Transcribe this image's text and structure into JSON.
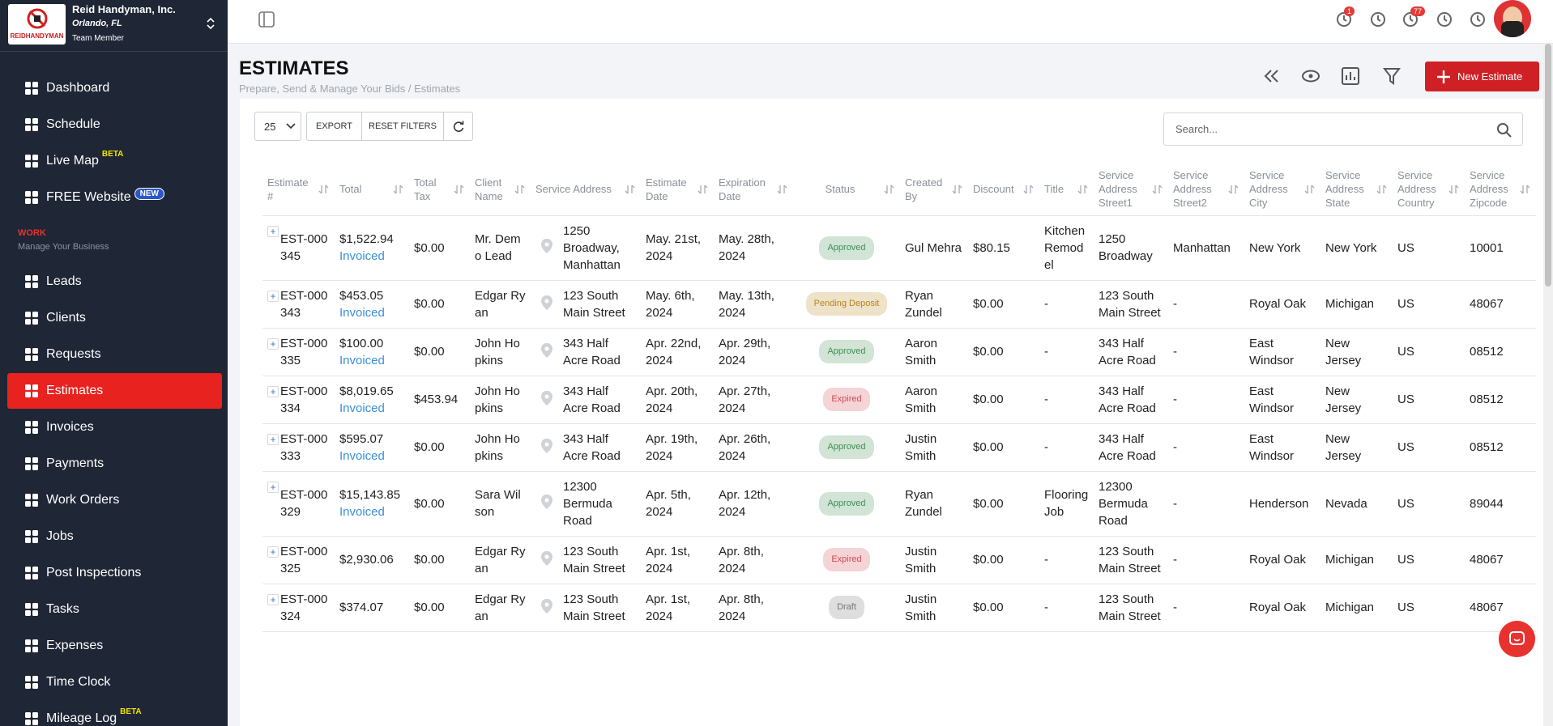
{
  "sidebar": {
    "company": "Reid Handyman, Inc.",
    "location": "Orlando, FL",
    "role": "Team Member",
    "logo_text": "REIDHANDYMAN",
    "nav_top": [
      {
        "label": "Dashboard"
      },
      {
        "label": "Schedule"
      },
      {
        "label": "Live Map",
        "tag": "BETA"
      },
      {
        "label": "FREE Website",
        "tag": "NEW"
      }
    ],
    "section": {
      "title": "WORK",
      "subtitle": "Manage Your Business"
    },
    "nav_work": [
      {
        "label": "Leads"
      },
      {
        "label": "Clients"
      },
      {
        "label": "Requests"
      },
      {
        "label": "Estimates",
        "active": true
      },
      {
        "label": "Invoices"
      },
      {
        "label": "Payments"
      },
      {
        "label": "Work Orders"
      },
      {
        "label": "Jobs"
      },
      {
        "label": "Post Inspections"
      },
      {
        "label": "Tasks"
      },
      {
        "label": "Expenses"
      },
      {
        "label": "Time Clock"
      },
      {
        "label": "Mileage Log",
        "tag": "BETA"
      }
    ]
  },
  "topbar": {
    "badges": [
      1,
      77
    ]
  },
  "page": {
    "title": "ESTIMATES",
    "subtitle": "Prepare, Send & Manage Your Bids / Estimates",
    "new_button": "New Estimate"
  },
  "toolbar": {
    "page_size": "25",
    "export": "EXPORT",
    "reset": "RESET FILTERS",
    "search_placeholder": "Search..."
  },
  "table": {
    "columns": [
      "Estimate #",
      "Total",
      "Total Tax",
      "Client Name",
      "Service Address",
      "Estimate Date",
      "Expiration Date",
      "Status",
      "Created By",
      "Discount",
      "Title",
      "Service Address Street1",
      "Service Address Street2",
      "Service Address City",
      "Service Address State",
      "Service Address Country",
      "Service Address Zipcode"
    ],
    "rows": [
      {
        "number": "EST-000345",
        "total": "$1,522.94",
        "invoice": "Invoiced",
        "tax": "$0.00",
        "client": "Mr. Demo Lead",
        "address": "1250 Broadway, Manhattan",
        "estimate_date": "May. 21st, 2024",
        "expiration_date": "May. 28th, 2024",
        "status": "Approved",
        "status_color": "#3f8f55",
        "created_by": "Gul Mehra",
        "discount": "$80.15",
        "title": "Kitchen Remodel",
        "street1": "1250 Broadway",
        "street2": "Manhattan",
        "city": "New York",
        "state": "New York",
        "country": "US",
        "zip": "10001"
      },
      {
        "number": "EST-000343",
        "total": "$453.05",
        "invoice": "Invoiced",
        "tax": "$0.00",
        "client": "Edgar Ryan",
        "address": "123 South Main Street",
        "estimate_date": "May. 6th, 2024",
        "expiration_date": "May. 13th, 2024",
        "status": "Pending Deposit",
        "status_color": "#b7861a",
        "created_by": "Ryan Zundel",
        "discount": "$0.00",
        "title": "-",
        "street1": "123 South Main Street",
        "street2": "-",
        "city": "Royal Oak",
        "state": "Michigan",
        "country": "US",
        "zip": "48067"
      },
      {
        "number": "EST-000335",
        "total": "$100.00",
        "invoice": "Invoiced",
        "tax": "$0.00",
        "client": "John Hopkins",
        "address": "343 Half Acre Road",
        "estimate_date": "Apr. 22nd, 2024",
        "expiration_date": "Apr. 29th, 2024",
        "status": "Approved",
        "status_color": "#3f8f55",
        "created_by": "Aaron Smith",
        "discount": "$0.00",
        "title": "-",
        "street1": "343 Half Acre Road",
        "street2": "-",
        "city": "East Windsor",
        "state": "New Jersey",
        "country": "US",
        "zip": "08512"
      },
      {
        "number": "EST-000334",
        "total": "$8,019.65",
        "invoice": "Invoiced",
        "tax": "$453.94",
        "client": "John Hopkins",
        "address": "343 Half Acre Road",
        "estimate_date": "Apr. 20th, 2024",
        "expiration_date": "Apr. 27th, 2024",
        "status": "Expired",
        "status_color": "#d14b55",
        "created_by": "Aaron Smith",
        "discount": "$0.00",
        "title": "-",
        "street1": "343 Half Acre Road",
        "street2": "-",
        "city": "East Windsor",
        "state": "New Jersey",
        "country": "US",
        "zip": "08512"
      },
      {
        "number": "EST-000333",
        "total": "$595.07",
        "invoice": "Invoiced",
        "tax": "$0.00",
        "client": "John Hopkins",
        "address": "343 Half Acre Road",
        "estimate_date": "Apr. 19th, 2024",
        "expiration_date": "Apr. 26th, 2024",
        "status": "Approved",
        "status_color": "#3f8f55",
        "created_by": "Justin Smith",
        "discount": "$0.00",
        "title": "-",
        "street1": "343 Half Acre Road",
        "street2": "-",
        "city": "East Windsor",
        "state": "New Jersey",
        "country": "US",
        "zip": "08512"
      },
      {
        "number": "EST-000329",
        "total": "$15,143.85",
        "invoice": "Invoiced",
        "tax": "$0.00",
        "client": "Sara Wilson",
        "address": "12300 Bermuda Road",
        "estimate_date": "Apr. 5th, 2024",
        "expiration_date": "Apr. 12th, 2024",
        "status": "Approved",
        "status_color": "#3f8f55",
        "created_by": "Ryan Zundel",
        "discount": "$0.00",
        "title": "Flooring Job",
        "street1": "12300 Bermuda Road",
        "street2": "-",
        "city": "Henderson",
        "state": "Nevada",
        "country": "US",
        "zip": "89044"
      },
      {
        "number": "EST-000325",
        "total": "$2,930.06",
        "tax": "$0.00",
        "client": "Edgar Ryan",
        "address": "123 South Main Street",
        "estimate_date": "Apr. 1st, 2024",
        "expiration_date": "Apr. 8th, 2024",
        "status": "Expired",
        "status_color": "#d14b55",
        "created_by": "Justin Smith",
        "discount": "$0.00",
        "title": "-",
        "street1": "123 South Main Street",
        "street2": "-",
        "city": "Royal Oak",
        "state": "Michigan",
        "country": "US",
        "zip": "48067"
      },
      {
        "number": "EST-000324",
        "total": "$374.07",
        "tax": "$0.00",
        "client": "Edgar Ryan",
        "address": "123 South Main Street",
        "estimate_date": "Apr. 1st, 2024",
        "expiration_date": "Apr. 8th, 2024",
        "status": "Draft",
        "status_color": "#777777",
        "created_by": "Justin Smith",
        "discount": "$0.00",
        "title": "-",
        "street1": "123 South Main Street",
        "street2": "-",
        "city": "Royal Oak",
        "state": "Michigan",
        "country": "US",
        "zip": "48067"
      }
    ]
  }
}
